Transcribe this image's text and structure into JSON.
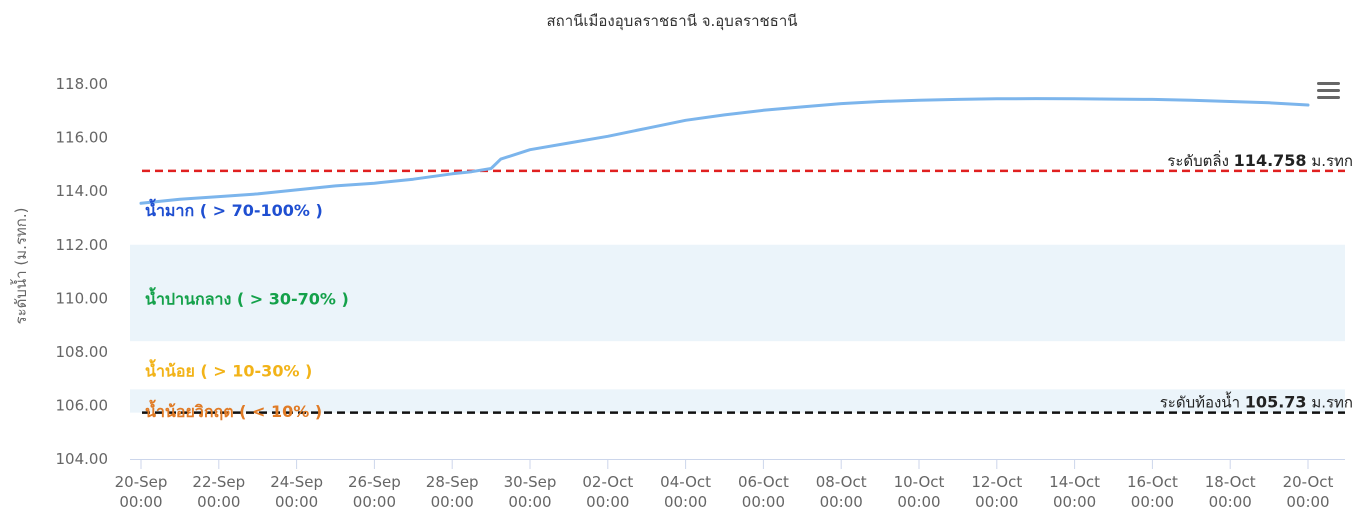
{
  "chart_data": {
    "type": "line",
    "title": "สถานีเมืองอุบลราชธานี จ.อุบลราชธานี",
    "ylabel": "ระดับน้ำ (ม.รทก.)",
    "xlabel": "",
    "ylim": [
      104,
      118.9
    ],
    "yticks": [
      "104.00",
      "106.00",
      "108.00",
      "110.00",
      "112.00",
      "114.00",
      "116.00",
      "118.00"
    ],
    "x_range": [
      "2021-09-20 00:00",
      "2021-10-20 00:00"
    ],
    "xticks": [
      {
        "date": "2021-09-20",
        "label1": "20-Sep",
        "label2": "00:00"
      },
      {
        "date": "2021-09-22",
        "label1": "22-Sep",
        "label2": "00:00"
      },
      {
        "date": "2021-09-24",
        "label1": "24-Sep",
        "label2": "00:00"
      },
      {
        "date": "2021-09-26",
        "label1": "26-Sep",
        "label2": "00:00"
      },
      {
        "date": "2021-09-28",
        "label1": "28-Sep",
        "label2": "00:00"
      },
      {
        "date": "2021-09-30",
        "label1": "30-Sep",
        "label2": "00:00"
      },
      {
        "date": "2021-10-02",
        "label1": "02-Oct",
        "label2": "00:00"
      },
      {
        "date": "2021-10-04",
        "label1": "04-Oct",
        "label2": "00:00"
      },
      {
        "date": "2021-10-06",
        "label1": "06-Oct",
        "label2": "00:00"
      },
      {
        "date": "2021-10-08",
        "label1": "08-Oct",
        "label2": "00:00"
      },
      {
        "date": "2021-10-10",
        "label1": "10-Oct",
        "label2": "00:00"
      },
      {
        "date": "2021-10-12",
        "label1": "12-Oct",
        "label2": "00:00"
      },
      {
        "date": "2021-10-14",
        "label1": "14-Oct",
        "label2": "00:00"
      },
      {
        "date": "2021-10-16",
        "label1": "16-Oct",
        "label2": "00:00"
      },
      {
        "date": "2021-10-18",
        "label1": "18-Oct",
        "label2": "00:00"
      },
      {
        "date": "2021-10-20",
        "label1": "20-Oct",
        "label2": "00:00"
      }
    ],
    "series": [
      {
        "color": "#7cb5ec",
        "points": [
          [
            "2021-09-20",
            113.55
          ],
          [
            "2021-09-21",
            113.7
          ],
          [
            "2021-09-22",
            113.8
          ],
          [
            "2021-09-23",
            113.9
          ],
          [
            "2021-09-24",
            114.05
          ],
          [
            "2021-09-25",
            114.2
          ],
          [
            "2021-09-26",
            114.3
          ],
          [
            "2021-09-27",
            114.45
          ],
          [
            "2021-09-28",
            114.65
          ],
          [
            "2021-09-28 12:00",
            114.73
          ],
          [
            "2021-09-29",
            114.85
          ],
          [
            "2021-09-29 06:00",
            115.2
          ],
          [
            "2021-09-30",
            115.55
          ],
          [
            "2021-10-01",
            115.8
          ],
          [
            "2021-10-02",
            116.05
          ],
          [
            "2021-10-03",
            116.35
          ],
          [
            "2021-10-04",
            116.65
          ],
          [
            "2021-10-05",
            116.85
          ],
          [
            "2021-10-06",
            117.02
          ],
          [
            "2021-10-07",
            117.15
          ],
          [
            "2021-10-08",
            117.27
          ],
          [
            "2021-10-09",
            117.35
          ],
          [
            "2021-10-10",
            117.4
          ],
          [
            "2021-10-11",
            117.43
          ],
          [
            "2021-10-12",
            117.45
          ],
          [
            "2021-10-13",
            117.46
          ],
          [
            "2021-10-14",
            117.45
          ],
          [
            "2021-10-15",
            117.44
          ],
          [
            "2021-10-16",
            117.43
          ],
          [
            "2021-10-17",
            117.4
          ],
          [
            "2021-10-18",
            117.35
          ],
          [
            "2021-10-19",
            117.3
          ],
          [
            "2021-10-20",
            117.22
          ]
        ]
      }
    ],
    "plot_bands": [
      {
        "from": 112.0,
        "to": 108.4,
        "color": "#ebf4fa"
      },
      {
        "from": 106.6,
        "to": 105.73,
        "color": "#ebf4fa"
      }
    ],
    "band_labels": [
      {
        "text": "น้ำมาก ( > 70-100% )",
        "y": 113.3,
        "color": "#1f4fd1"
      },
      {
        "text": "น้ำปานกลาง ( > 30-70% )",
        "y": 110.0,
        "color": "#14a14a"
      },
      {
        "text": "น้ำน้อย ( > 10-30% )",
        "y": 107.3,
        "color": "#f2b318"
      },
      {
        "text": "น้ำน้อยวิกฤต ( < 10% )",
        "y": 105.8,
        "color": "#e07b26"
      }
    ],
    "reference_lines": [
      {
        "value": 114.758,
        "color": "#e02020",
        "prefix": "ระดับตลิ่ง",
        "value_text": "114.758",
        "suffix": "ม.รทก"
      },
      {
        "value": 105.73,
        "color": "#111111",
        "prefix": "ระดับท้องน้ำ",
        "value_text": "105.73",
        "suffix": "ม.รทก"
      }
    ],
    "grid": false,
    "legend": "none"
  },
  "menu": {
    "icon": "hamburger-menu-icon"
  }
}
